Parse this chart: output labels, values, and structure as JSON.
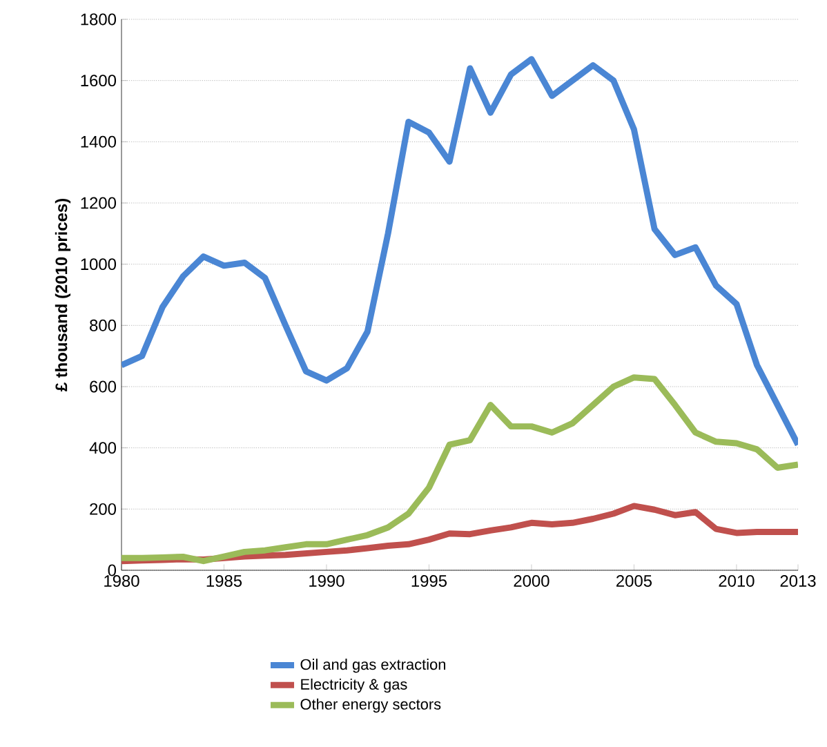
{
  "chart_data": {
    "type": "line",
    "ylabel": "£ thousand (2010 prices)",
    "x": [
      1980,
      1981,
      1982,
      1983,
      1984,
      1985,
      1986,
      1987,
      1988,
      1989,
      1990,
      1991,
      1992,
      1993,
      1994,
      1995,
      1996,
      1997,
      1998,
      1999,
      2000,
      2001,
      2002,
      2003,
      2004,
      2005,
      2006,
      2007,
      2008,
      2009,
      2010,
      2011,
      2012,
      2013
    ],
    "series": [
      {
        "name": "Oil and gas extraction",
        "color": "#4a86d4",
        "values": [
          670,
          700,
          860,
          960,
          1025,
          995,
          1005,
          955,
          800,
          650,
          620,
          660,
          780,
          1100,
          1465,
          1430,
          1335,
          1640,
          1495,
          1620,
          1670,
          1550,
          1600,
          1650,
          1600,
          1440,
          1115,
          1030,
          1055,
          930,
          870,
          670,
          540,
          410
        ]
      },
      {
        "name": "Electricity & gas",
        "color": "#c0504d",
        "values": [
          30,
          32,
          34,
          36,
          35,
          40,
          45,
          48,
          50,
          55,
          60,
          65,
          72,
          80,
          85,
          100,
          120,
          118,
          130,
          140,
          155,
          150,
          155,
          168,
          185,
          210,
          198,
          180,
          190,
          135,
          122,
          125,
          125,
          125
        ]
      },
      {
        "name": "Other energy sectors",
        "color": "#9bbb59",
        "values": [
          40,
          40,
          42,
          44,
          30,
          45,
          60,
          65,
          75,
          85,
          85,
          100,
          115,
          140,
          185,
          270,
          410,
          425,
          540,
          470,
          470,
          450,
          480,
          540,
          600,
          630,
          625,
          540,
          450,
          420,
          415,
          395,
          335,
          345
        ]
      }
    ],
    "xlim": [
      1980,
      2013
    ],
    "xticks": [
      1980,
      1985,
      1990,
      1995,
      2000,
      2005,
      2010,
      2013
    ],
    "ylim": [
      0,
      1800
    ],
    "yticks": [
      0,
      200,
      400,
      600,
      800,
      1000,
      1200,
      1400,
      1600,
      1800
    ],
    "grid": "y",
    "legend": "bottom",
    "marker": "none",
    "line_style": "solid"
  }
}
